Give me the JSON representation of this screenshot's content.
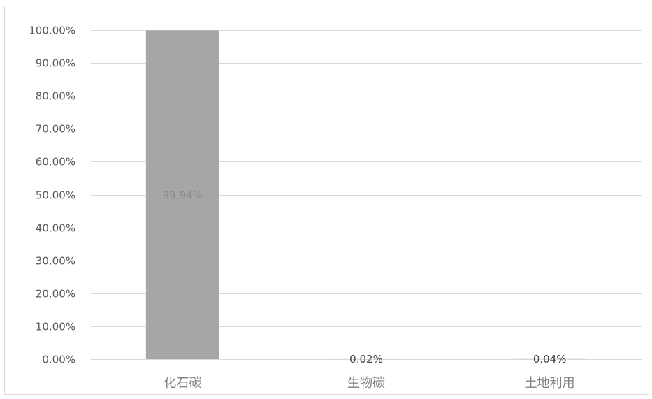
{
  "chart_data": {
    "type": "bar",
    "categories": [
      "化石碳",
      "生物碳",
      "土地利用"
    ],
    "values": [
      99.94,
      0.02,
      0.04
    ],
    "data_labels": [
      "99.94%",
      "0.02%",
      "0.04%"
    ],
    "y_ticks": [
      0,
      10,
      20,
      30,
      40,
      50,
      60,
      70,
      80,
      90,
      100
    ],
    "y_tick_labels": [
      "0.00%",
      "10.00%",
      "20.00%",
      "30.00%",
      "40.00%",
      "50.00%",
      "60.00%",
      "70.00%",
      "80.00%",
      "90.00%",
      "100.00%"
    ],
    "ylim": [
      0,
      100
    ],
    "grid": true,
    "legend": "none",
    "colors": {
      "bar": "#a6a6a6",
      "grid": "#d9d9d9",
      "tick_text": "#595959",
      "category_text": "#808080",
      "label_inside": "#8c8c8c",
      "label_outside": "#404040"
    }
  }
}
